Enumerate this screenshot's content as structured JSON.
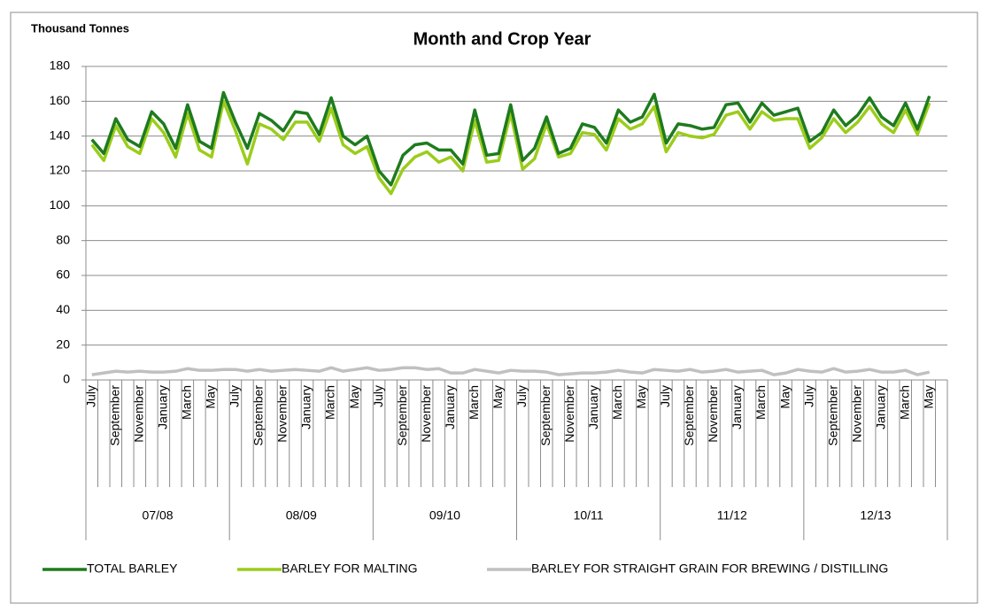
{
  "chart_data": {
    "type": "line",
    "y_label": "Thousand Tonnes",
    "x_label": "Month and Crop Year",
    "categories": [
      "July",
      null,
      "September",
      null,
      "November",
      null,
      "January",
      null,
      "March",
      null,
      "May",
      null,
      "July",
      null,
      "September",
      null,
      "November",
      null,
      "January",
      null,
      "March",
      null,
      "May",
      null,
      "July",
      null,
      "September",
      null,
      "November",
      null,
      "January",
      null,
      "March",
      null,
      "May",
      null,
      "July",
      null,
      "September",
      null,
      "November",
      null,
      "January",
      null,
      "March",
      null,
      "May",
      null,
      "July",
      null,
      "September",
      null,
      "November",
      null,
      "January",
      null,
      "March",
      null,
      "May",
      null,
      "July",
      null,
      "September",
      null,
      "November",
      null,
      "January",
      null,
      "March",
      null,
      "May",
      null
    ],
    "groups": [
      "07/08",
      "08/09",
      "09/10",
      "10/11",
      "11/12",
      "12/13"
    ],
    "ylim": [
      0,
      180
    ],
    "yticks": [
      0,
      20,
      40,
      60,
      80,
      100,
      120,
      140,
      160,
      180
    ],
    "grid": true,
    "legend": "bottom",
    "series": [
      {
        "name": "TOTAL BARLEY",
        "color": "#1e7b1e",
        "values": [
          138,
          130,
          150,
          138,
          134,
          154,
          147,
          133,
          158,
          137,
          133,
          165,
          148,
          133,
          153,
          149,
          143,
          154,
          153,
          141,
          162,
          140,
          135,
          140,
          120,
          112,
          129,
          135,
          136,
          132,
          132,
          124,
          155,
          129,
          130,
          158,
          126,
          133,
          151,
          130,
          133,
          147,
          145,
          136,
          155,
          148,
          151,
          164,
          136,
          147,
          146,
          144,
          145,
          158,
          159,
          148,
          159,
          152,
          154,
          156,
          137,
          142,
          155,
          146,
          152,
          162,
          151,
          146,
          159,
          144,
          163,
          null
        ]
      },
      {
        "name": "BARLEY FOR MALTING",
        "color": "#9ccc1c",
        "values": [
          135,
          126,
          146,
          134,
          130,
          150,
          142,
          128,
          153,
          132,
          128,
          160,
          143,
          124,
          147,
          144,
          138,
          148,
          148,
          137,
          156,
          135,
          130,
          134,
          116,
          107,
          121,
          128,
          131,
          125,
          128,
          120,
          149,
          125,
          126,
          153,
          121,
          127,
          147,
          128,
          130,
          142,
          141,
          132,
          150,
          144,
          147,
          157,
          131,
          142,
          140,
          139,
          141,
          152,
          154,
          144,
          154,
          149,
          150,
          150,
          133,
          139,
          150,
          142,
          148,
          157,
          147,
          142,
          155,
          141,
          159,
          null
        ]
      },
      {
        "name": "BARLEY FOR STRAIGHT GRAIN FOR BREWING / DISTILLING",
        "color": "#c0c0c0",
        "values": [
          3,
          4,
          5,
          4.5,
          5,
          4.5,
          4.5,
          5,
          6.5,
          5.5,
          5.5,
          6,
          6,
          5,
          6,
          5,
          5.5,
          6,
          5.5,
          5,
          7,
          5,
          6,
          7,
          5.5,
          6,
          7,
          7,
          6,
          6.5,
          4,
          4,
          6,
          5,
          4,
          5.5,
          5,
          5,
          4.5,
          3,
          3.5,
          4,
          4,
          4.5,
          5.5,
          4.5,
          4,
          6,
          5.5,
          5,
          6,
          4.5,
          5,
          6,
          4.5,
          5,
          5.5,
          3,
          4,
          6,
          5,
          4.5,
          6.5,
          4.5,
          5,
          6,
          4.5,
          4.5,
          5.5,
          3,
          4.5,
          null
        ]
      }
    ]
  }
}
